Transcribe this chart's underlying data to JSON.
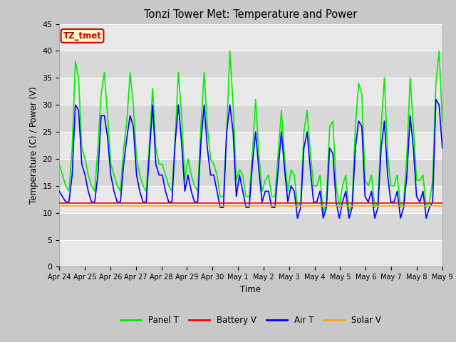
{
  "title": "Tonzi Tower Met: Temperature and Power",
  "ylabel": "Temperature (C) / Power (V)",
  "xlabel": "Time",
  "ylim": [
    0,
    45
  ],
  "yticks": [
    0,
    5,
    10,
    15,
    20,
    25,
    30,
    35,
    40,
    45
  ],
  "xtick_labels": [
    "Apr 24",
    "Apr 25",
    "Apr 26",
    "Apr 27",
    "Apr 28",
    "Apr 29",
    "Apr 30",
    "May 1",
    "May 2",
    "May 3",
    "May 4",
    "May 5",
    "May 6",
    "May 7",
    "May 8",
    "May 9"
  ],
  "n_days": 15,
  "fig_bg": "#c8c8c8",
  "plot_bg_light": "#e8e8e8",
  "plot_bg_dark": "#d8d8d8",
  "label_box_text": "TZ_tmet",
  "label_box_bg": "#ffffcc",
  "label_box_edge": "#cc0000",
  "label_box_text_color": "#cc0000",
  "panel_t_color": "#00ee00",
  "battery_v_color": "#ff0000",
  "air_t_color": "#0000ff",
  "solar_v_color": "#ffaa00",
  "line_width": 1.2,
  "panel_t_y": [
    19,
    17,
    15,
    14,
    22,
    38,
    35,
    22,
    20,
    17,
    15,
    14,
    22,
    32,
    36,
    28,
    19,
    17,
    15,
    14,
    22,
    27,
    36,
    30,
    20,
    17,
    15,
    14,
    23,
    33,
    22,
    19,
    19,
    17,
    15,
    14,
    24,
    36,
    28,
    16,
    20,
    17,
    15,
    14,
    26,
    36,
    26,
    20,
    19,
    17,
    13,
    13,
    25,
    40,
    30,
    16,
    18,
    17,
    13,
    13,
    21,
    31,
    21,
    14,
    16,
    17,
    13,
    13,
    21,
    29,
    20,
    14,
    18,
    17,
    11,
    12,
    25,
    29,
    21,
    15,
    15,
    17,
    10,
    12,
    26,
    27,
    15,
    11,
    15,
    17,
    10,
    12,
    26,
    34,
    32,
    16,
    15,
    17,
    11,
    12,
    26,
    35,
    21,
    15,
    15,
    17,
    11,
    12,
    21,
    35,
    26,
    16,
    16,
    17,
    11,
    12,
    16,
    34,
    40,
    27
  ],
  "air_t_y": [
    14,
    13,
    12,
    12,
    17,
    30,
    29,
    19,
    17,
    14,
    12,
    12,
    17,
    28,
    28,
    24,
    17,
    14,
    12,
    12,
    19,
    24,
    28,
    26,
    17,
    14,
    12,
    12,
    21,
    30,
    19,
    17,
    17,
    14,
    12,
    12,
    23,
    30,
    23,
    14,
    17,
    14,
    12,
    12,
    23,
    30,
    22,
    17,
    17,
    14,
    11,
    11,
    25,
    30,
    25,
    13,
    17,
    14,
    11,
    11,
    19,
    25,
    18,
    12,
    14,
    14,
    11,
    11,
    18,
    25,
    18,
    12,
    15,
    14,
    9,
    11,
    22,
    25,
    18,
    12,
    12,
    14,
    9,
    11,
    22,
    21,
    12,
    9,
    12,
    14,
    9,
    11,
    22,
    27,
    26,
    13,
    12,
    14,
    9,
    11,
    22,
    27,
    17,
    12,
    12,
    14,
    9,
    11,
    17,
    28,
    22,
    13,
    12,
    14,
    9,
    11,
    12,
    31,
    30,
    22
  ],
  "battery_v_y": [
    11.8,
    11.8,
    11.8,
    11.8,
    11.8,
    11.8,
    11.8,
    11.8,
    11.8,
    11.8,
    11.8,
    11.8,
    11.8,
    11.8,
    11.8,
    11.8,
    11.8,
    11.8,
    11.8,
    11.8,
    11.8,
    11.8,
    11.8,
    11.8,
    11.8,
    11.8,
    11.8,
    11.8,
    11.8,
    11.8,
    11.8,
    11.8,
    11.8,
    11.8,
    11.8,
    11.8,
    11.8,
    11.8,
    11.8,
    11.8,
    11.8,
    11.8,
    11.8,
    11.8,
    11.8,
    11.8,
    11.8,
    11.8,
    11.8,
    11.8,
    11.8,
    11.8,
    11.8,
    11.8,
    11.8,
    11.8,
    11.8,
    11.8,
    11.8,
    11.8,
    11.8,
    11.8,
    11.8,
    11.8,
    11.8,
    11.8,
    11.8,
    11.8,
    11.8,
    11.8,
    11.8,
    11.8,
    11.8,
    11.8,
    11.8,
    11.8,
    11.8,
    11.8,
    11.8,
    11.8,
    11.8,
    11.8,
    11.8,
    11.8,
    11.8,
    11.8,
    11.8,
    11.8,
    11.8,
    11.8,
    11.8,
    11.8,
    11.8,
    11.8,
    11.8,
    11.8,
    11.8,
    11.8,
    11.8,
    11.8,
    11.8,
    11.8,
    11.8,
    11.8,
    11.8,
    11.8,
    11.8,
    11.8,
    11.8,
    11.8,
    11.8,
    11.8,
    11.8,
    11.8,
    11.8,
    11.8,
    11.8,
    11.8,
    11.8,
    11.8
  ],
  "solar_v_y": [
    11.3,
    11.3,
    11.3,
    11.3,
    11.3,
    11.3,
    11.3,
    11.3,
    11.3,
    11.3,
    11.3,
    11.3,
    11.3,
    11.3,
    11.3,
    11.3,
    11.3,
    11.3,
    11.3,
    11.3,
    11.3,
    11.3,
    11.3,
    11.3,
    11.3,
    11.3,
    11.3,
    11.3,
    11.3,
    11.3,
    11.3,
    11.3,
    11.3,
    11.3,
    11.3,
    11.3,
    11.3,
    11.3,
    11.3,
    11.3,
    11.3,
    11.3,
    11.3,
    11.3,
    11.3,
    11.3,
    11.3,
    11.3,
    11.3,
    11.3,
    11.3,
    11.3,
    11.3,
    11.3,
    11.3,
    11.3,
    11.3,
    11.3,
    11.3,
    11.3,
    11.3,
    11.3,
    11.3,
    11.3,
    11.3,
    11.3,
    11.3,
    11.3,
    11.3,
    11.3,
    11.3,
    11.3,
    11.3,
    11.3,
    11.3,
    11.3,
    11.3,
    11.3,
    11.3,
    11.3,
    11.3,
    11.3,
    11.3,
    11.3,
    11.3,
    11.3,
    11.3,
    11.3,
    11.3,
    11.3,
    11.3,
    11.3,
    11.3,
    11.3,
    11.3,
    11.3,
    11.3,
    11.3,
    11.3,
    11.3,
    11.3,
    11.3,
    11.3,
    11.3,
    11.3,
    11.3,
    11.3,
    11.3,
    11.3,
    11.3,
    11.3,
    11.3,
    11.3,
    11.3,
    11.3,
    11.3,
    11.3,
    11.3,
    11.3,
    11.3
  ]
}
